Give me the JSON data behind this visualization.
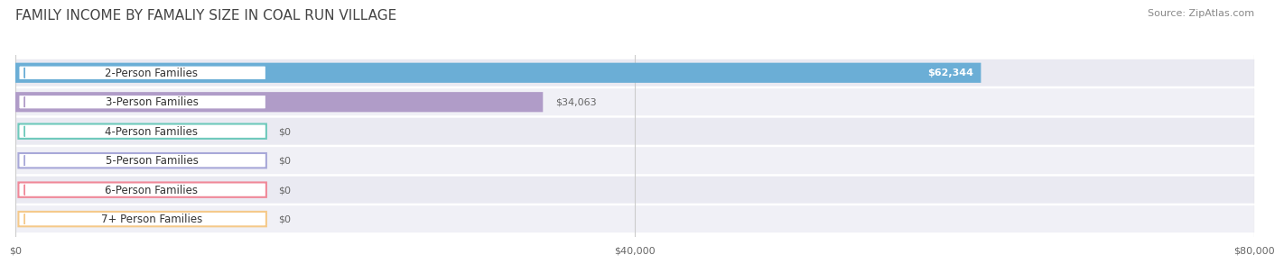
{
  "title": "FAMILY INCOME BY FAMALIY SIZE IN COAL RUN VILLAGE",
  "source": "Source: ZipAtlas.com",
  "categories": [
    "2-Person Families",
    "3-Person Families",
    "4-Person Families",
    "5-Person Families",
    "6-Person Families",
    "7+ Person Families"
  ],
  "values": [
    62344,
    34063,
    0,
    0,
    0,
    0
  ],
  "bar_colors": [
    "#6baed6",
    "#b09cc8",
    "#6ec9bb",
    "#a8a8d8",
    "#f08898",
    "#f5c98a"
  ],
  "row_bg_colors": [
    "#eaeaf2",
    "#f0f0f6",
    "#eaeaf2",
    "#f0f0f6",
    "#eaeaf2",
    "#f0f0f6"
  ],
  "xlim": [
    0,
    80000
  ],
  "xticks": [
    0,
    40000,
    80000
  ],
  "xtick_labels": [
    "$0",
    "$40,000",
    "$80,000"
  ],
  "value_labels": [
    "$62,344",
    "$34,063",
    "$0",
    "$0",
    "$0",
    "$0"
  ],
  "title_fontsize": 11,
  "source_fontsize": 8,
  "bar_label_fontsize": 8.5,
  "value_fontsize": 8,
  "background_color": "#ffffff"
}
